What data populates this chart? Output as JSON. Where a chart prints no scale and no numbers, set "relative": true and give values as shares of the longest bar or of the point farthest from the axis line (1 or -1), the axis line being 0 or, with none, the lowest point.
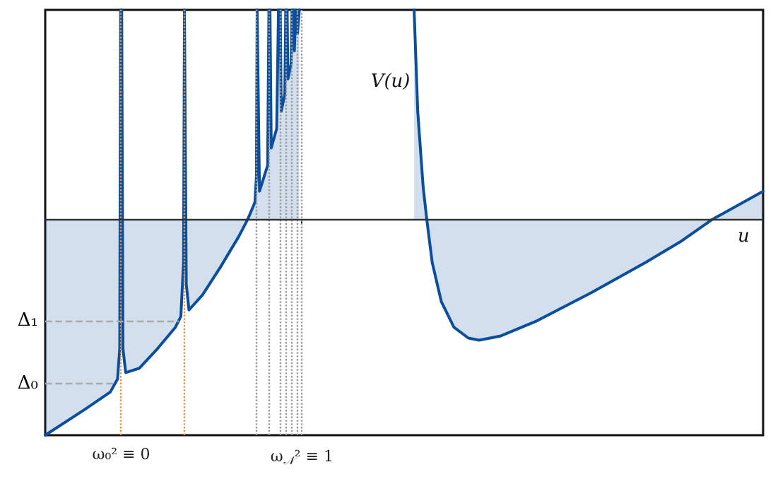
{
  "chart_data": {
    "type": "area",
    "relative": true,
    "xlabel": "u",
    "ylabel": "V(u)",
    "color": "#0b4f9c",
    "marker": "none",
    "grid": false,
    "tick_labels": "x",
    "xlim": [
      -0.42,
      3.55
    ],
    "xticks": [
      {
        "value": 0,
        "label": "ω₀² ≡ 0"
      },
      {
        "value": 1,
        "label": "ω$_{𝒩}$² ≡ 1"
      }
    ],
    "x": [
      -0.42,
      -0.2,
      -0.06,
      -0.02,
      -0.008,
      -0.003,
      0.003,
      0.01,
      0.025,
      0.1,
      0.2,
      0.3,
      0.33,
      0.345,
      0.35,
      0.355,
      0.36,
      0.375,
      0.45,
      0.55,
      0.65,
      0.7,
      0.74,
      0.748,
      0.752,
      0.756,
      0.765,
      0.81,
      0.817,
      0.823,
      0.83,
      0.86,
      0.87,
      0.88,
      0.885,
      0.905,
      0.91,
      0.918,
      0.922,
      0.94,
      0.945,
      0.953,
      0.958,
      0.965,
      0.97,
      0.975,
      0.985,
      1.3,
      1.62,
      1.64,
      1.67,
      1.69,
      1.72,
      1.77,
      1.84,
      1.92,
      1.98,
      2.1,
      2.3,
      2.6,
      2.9,
      3.1,
      3.27,
      3.55
    ],
    "values": [
      -1,
      -0.88,
      -0.8,
      -0.74,
      -0.6,
      0.97,
      0.97,
      -0.6,
      -0.71,
      -0.69,
      -0.6,
      -0.5,
      -0.45,
      -0.2,
      0.97,
      0.97,
      -0.3,
      -0.42,
      -0.35,
      -0.22,
      -0.08,
      0,
      0.08,
      0.2,
      0.97,
      0.97,
      0.13,
      0.25,
      0.97,
      0.97,
      0.33,
      0.42,
      0.97,
      0.97,
      0.5,
      0.58,
      0.97,
      0.97,
      0.65,
      0.72,
      0.97,
      0.97,
      0.78,
      0.97,
      0.97,
      0.86,
      0.97,
      null,
      0.97,
      0.5,
      0.15,
      0,
      -0.2,
      -0.38,
      -0.5,
      -0.55,
      -0.56,
      -0.54,
      -0.47,
      -0.34,
      -0.2,
      -0.1,
      0,
      0.13
    ],
    "ref_lines": [
      {
        "axis": "x",
        "value": 0,
        "color": "#e8913a",
        "line_style": "dotted"
      },
      {
        "axis": "x",
        "value": 0.35,
        "color": "#e8913a",
        "line_style": "dotted"
      },
      {
        "axis": "x",
        "value": 0.75,
        "color": "#999999",
        "line_style": "dotted"
      },
      {
        "axis": "x",
        "value": 0.82,
        "color": "#999999",
        "line_style": "dotted"
      },
      {
        "axis": "x",
        "value": 0.875,
        "color": "#999999",
        "line_style": "dotted"
      },
      {
        "axis": "x",
        "value": 0.914,
        "color": "#999999",
        "line_style": "dotted"
      },
      {
        "axis": "x",
        "value": 0.945,
        "color": "#999999",
        "line_style": "dotted"
      },
      {
        "axis": "x",
        "value": 0.969,
        "color": "#999999",
        "line_style": "dotted"
      },
      {
        "axis": "x",
        "value": 1,
        "color": "#999999",
        "line_style": "dotted"
      },
      {
        "axis": "y",
        "value": -0.47,
        "label": "Δ₁",
        "color": "#aaaaaa",
        "line_style": "dashed"
      },
      {
        "axis": "y",
        "value": -0.76,
        "label": "Δ₀",
        "color": "#aaaaaa",
        "line_style": "dashed"
      }
    ]
  }
}
